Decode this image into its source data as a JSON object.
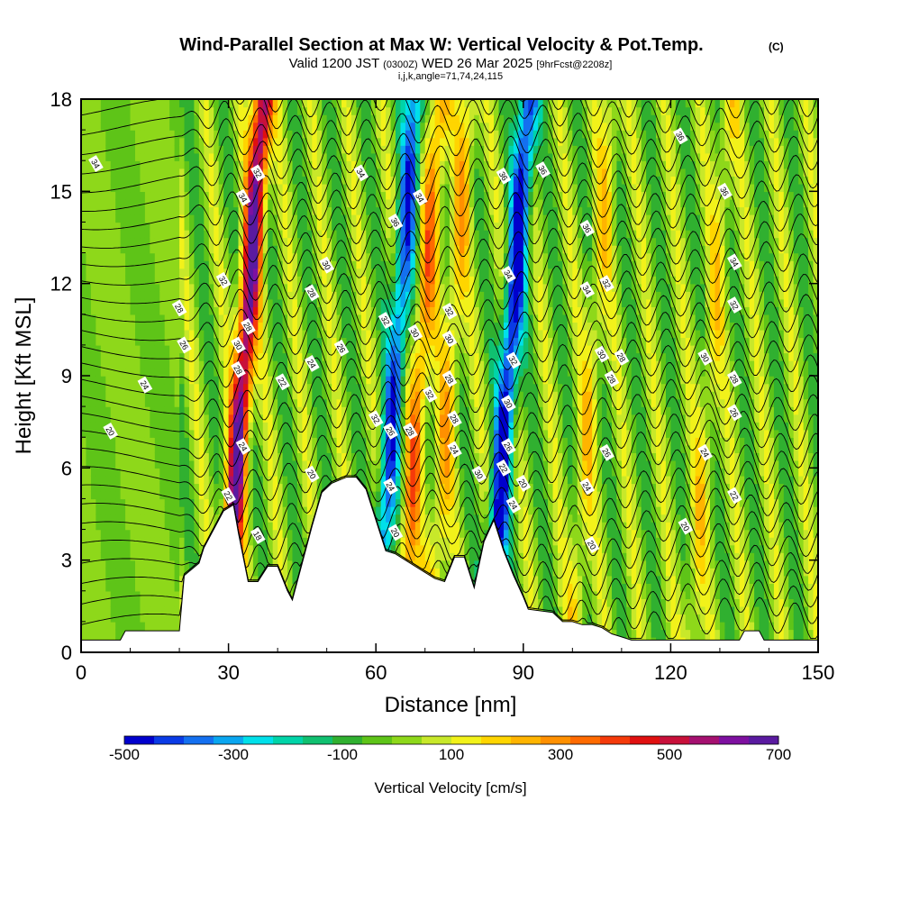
{
  "chart_data": {
    "type": "heatmap",
    "title": "Wind-Parallel Section at Max W: Vertical Velocity & Pot.Temp.",
    "title_mark": "(C)",
    "subtitle": {
      "valid": "Valid 1200 JST",
      "utc": "(0300Z)",
      "date": "WED 26 Mar 2025",
      "forecast": "[9hrFcst@2208z]"
    },
    "indices": "i,j,k,angle=71,74,24,115",
    "xlabel": "Distance [nm]",
    "ylabel": "Height [Kft MSL]",
    "xlim": [
      0,
      150
    ],
    "ylim": [
      0,
      18
    ],
    "x_ticks": [
      "0",
      "30",
      "60",
      "90",
      "120",
      "150"
    ],
    "y_ticks": [
      "0",
      "3",
      "6",
      "9",
      "12",
      "15",
      "18"
    ],
    "colorbar": {
      "label": "Vertical Velocity [cm/s]",
      "range": [
        -500,
        700
      ],
      "tick_labels": [
        "-500",
        "-300",
        "-100",
        "100",
        "300",
        "500",
        "700"
      ],
      "colors": [
        "#0000cd",
        "#0a3be6",
        "#1470f0",
        "#0aa6f0",
        "#00e0ea",
        "#00d4a8",
        "#10c070",
        "#30b030",
        "#5ec418",
        "#8ed81a",
        "#c8e82a",
        "#f2f21a",
        "#ffd500",
        "#ffb400",
        "#ff9000",
        "#ff6a00",
        "#f53a0a",
        "#e01010",
        "#c8103a",
        "#a51070",
        "#7e10a0",
        "#5a1aa0"
      ]
    },
    "vertical_velocity_features_cm_s": [
      {
        "x": 33,
        "peak": 650
      },
      {
        "x": 64,
        "peak": -400
      },
      {
        "x": 69,
        "peak": 300
      },
      {
        "x": 87,
        "peak": -500
      },
      {
        "x": 75,
        "peak": 200
      },
      {
        "x": 104,
        "peak": 150
      },
      {
        "x": 128,
        "peak": 130
      }
    ],
    "terrain_kft": {
      "x": [
        0,
        8,
        9,
        20,
        21,
        24,
        25,
        28,
        29,
        31,
        32,
        34,
        36,
        38,
        40,
        42,
        43,
        45,
        47,
        49,
        51,
        54,
        56,
        58,
        60,
        62,
        64,
        66,
        70,
        72,
        74,
        76,
        78,
        80,
        82,
        84,
        86,
        88,
        90,
        91,
        96,
        98,
        100,
        102,
        104,
        106,
        108,
        110,
        112,
        113,
        120,
        134,
        135,
        138,
        139,
        150
      ],
      "y": [
        0.4,
        0.4,
        0.7,
        0.7,
        2.5,
        2.9,
        3.4,
        4.3,
        4.6,
        4.8,
        3.9,
        2.3,
        2.3,
        2.8,
        2.8,
        2.0,
        1.7,
        2.9,
        4.1,
        5.2,
        5.5,
        5.7,
        5.7,
        5.3,
        4.3,
        3.3,
        3.2,
        3.0,
        2.6,
        2.4,
        2.3,
        3.1,
        3.1,
        2.1,
        3.6,
        4.3,
        3.3,
        2.5,
        1.8,
        1.4,
        1.3,
        1.0,
        1.0,
        0.9,
        0.9,
        0.8,
        0.6,
        0.5,
        0.4,
        0.4,
        0.4,
        0.4,
        0.7,
        0.7,
        0.4,
        0.4
      ]
    },
    "isentrope_labels": [
      {
        "text": "34",
        "x": 3,
        "y": 15.9
      },
      {
        "text": "32",
        "x": 36,
        "y": 15.6
      },
      {
        "text": "34",
        "x": 33,
        "y": 14.8
      },
      {
        "text": "34",
        "x": 57,
        "y": 15.6
      },
      {
        "text": "36",
        "x": 86,
        "y": 15.5
      },
      {
        "text": "36",
        "x": 94,
        "y": 15.7
      },
      {
        "text": "36",
        "x": 122,
        "y": 16.8
      },
      {
        "text": "36",
        "x": 131,
        "y": 15.0
      },
      {
        "text": "36",
        "x": 64,
        "y": 14.0
      },
      {
        "text": "34",
        "x": 69,
        "y": 14.8
      },
      {
        "text": "36",
        "x": 103,
        "y": 13.8
      },
      {
        "text": "34",
        "x": 133,
        "y": 12.7
      },
      {
        "text": "32",
        "x": 29,
        "y": 12.1
      },
      {
        "text": "30",
        "x": 50,
        "y": 12.6
      },
      {
        "text": "28",
        "x": 47,
        "y": 11.7
      },
      {
        "text": "34",
        "x": 87,
        "y": 12.3
      },
      {
        "text": "34",
        "x": 103,
        "y": 11.8
      },
      {
        "text": "32",
        "x": 107,
        "y": 12.0
      },
      {
        "text": "32",
        "x": 133,
        "y": 11.3
      },
      {
        "text": "28",
        "x": 20,
        "y": 11.2
      },
      {
        "text": "28",
        "x": 34,
        "y": 10.6
      },
      {
        "text": "32",
        "x": 62,
        "y": 10.8
      },
      {
        "text": "32",
        "x": 75,
        "y": 11.1
      },
      {
        "text": "30",
        "x": 68,
        "y": 10.4
      },
      {
        "text": "30",
        "x": 75,
        "y": 10.2
      },
      {
        "text": "26",
        "x": 21,
        "y": 10.0
      },
      {
        "text": "30",
        "x": 32,
        "y": 10.0
      },
      {
        "text": "26",
        "x": 53,
        "y": 9.9
      },
      {
        "text": "24",
        "x": 47,
        "y": 9.4
      },
      {
        "text": "32",
        "x": 88,
        "y": 9.5
      },
      {
        "text": "30",
        "x": 106,
        "y": 9.7
      },
      {
        "text": "28",
        "x": 110,
        "y": 9.6
      },
      {
        "text": "30",
        "x": 127,
        "y": 9.6
      },
      {
        "text": "28",
        "x": 32,
        "y": 9.2
      },
      {
        "text": "24",
        "x": 13,
        "y": 8.7
      },
      {
        "text": "22",
        "x": 41,
        "y": 8.8
      },
      {
        "text": "28",
        "x": 75,
        "y": 8.9
      },
      {
        "text": "28",
        "x": 108,
        "y": 8.9
      },
      {
        "text": "28",
        "x": 133,
        "y": 8.9
      },
      {
        "text": "32",
        "x": 71,
        "y": 8.4
      },
      {
        "text": "30",
        "x": 87,
        "y": 8.1
      },
      {
        "text": "26",
        "x": 133,
        "y": 7.8
      },
      {
        "text": "20",
        "x": 6,
        "y": 7.2
      },
      {
        "text": "32",
        "x": 60,
        "y": 7.6
      },
      {
        "text": "28",
        "x": 76,
        "y": 7.6
      },
      {
        "text": "26",
        "x": 63,
        "y": 7.2
      },
      {
        "text": "28",
        "x": 67,
        "y": 7.2
      },
      {
        "text": "24",
        "x": 76,
        "y": 6.6
      },
      {
        "text": "26",
        "x": 87,
        "y": 6.7
      },
      {
        "text": "24",
        "x": 33,
        "y": 6.7
      },
      {
        "text": "26",
        "x": 107,
        "y": 6.5
      },
      {
        "text": "24",
        "x": 127,
        "y": 6.5
      },
      {
        "text": "22",
        "x": 86,
        "y": 6.0
      },
      {
        "text": "30",
        "x": 81,
        "y": 5.8
      },
      {
        "text": "20",
        "x": 47,
        "y": 5.8
      },
      {
        "text": "20",
        "x": 90,
        "y": 5.5
      },
      {
        "text": "24",
        "x": 63,
        "y": 5.4
      },
      {
        "text": "24",
        "x": 103,
        "y": 5.4
      },
      {
        "text": "22",
        "x": 30,
        "y": 5.1
      },
      {
        "text": "22",
        "x": 133,
        "y": 5.1
      },
      {
        "text": "24",
        "x": 88,
        "y": 4.8
      },
      {
        "text": "20",
        "x": 123,
        "y": 4.1
      },
      {
        "text": "18",
        "x": 36,
        "y": 3.8
      },
      {
        "text": "20",
        "x": 64,
        "y": 3.9
      },
      {
        "text": "20",
        "x": 104,
        "y": 3.5
      }
    ]
  }
}
